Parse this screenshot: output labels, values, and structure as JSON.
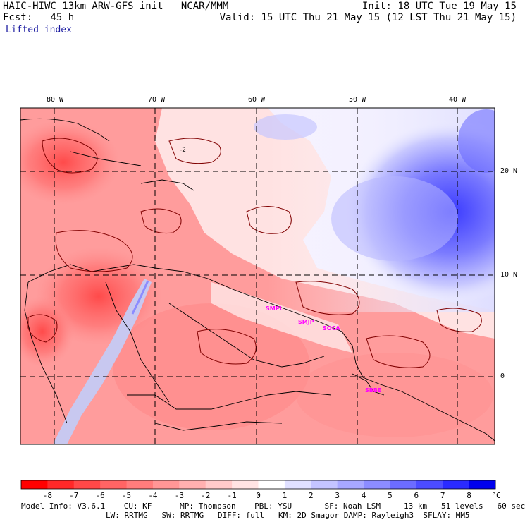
{
  "header": {
    "model_title": "HAIC-HIWC 13km ARW-GFS init   NCAR/MMM",
    "init": "Init: 18 UTC Tue 19 May 15",
    "forecast": "Fcst:   45 h",
    "valid": "Valid: 15 UTC Thu 21 May 15 (12 LST Thu 21 May 15)",
    "field_name": "Lifted index"
  },
  "map": {
    "longitude_labels": [
      "80 W",
      "70 W",
      "60 W",
      "50 W",
      "40 W"
    ],
    "latitude_labels": [
      "20 N",
      "10 N",
      "0"
    ],
    "contour_label": "-2",
    "stations": [
      "SMPL",
      "SMJP",
      "SOCA",
      "SBBE"
    ],
    "colors": {
      "unstable": "#ff0000",
      "neutral": "#ffffff",
      "stable": "#0000ff",
      "contour": "#800000",
      "coastline": "#000000",
      "station": "#ff00ff"
    }
  },
  "colorbar": {
    "labels": [
      "-8",
      "-7",
      "-6",
      "-5",
      "-4",
      "-3",
      "-2",
      "-1",
      "0",
      "1",
      "2",
      "3",
      "4",
      "5",
      "6",
      "7",
      "8"
    ],
    "unit": "°C",
    "colors": [
      "#ff0000",
      "#ff2828",
      "#ff4848",
      "#ff6464",
      "#ff7c7c",
      "#ff9696",
      "#ffb0b0",
      "#ffcaca",
      "#ffe4e4",
      "#ffffff",
      "#e0e0ff",
      "#c4c4ff",
      "#a8a8ff",
      "#8c8cff",
      "#6c6cff",
      "#4c4cff",
      "#2a2aff",
      "#0000ee"
    ]
  },
  "footer": {
    "line1": "Model Info: V3.6.1    CU: KF      MP: Thompson    PBL: YSU       SF: Noah LSM     13 km   51 levels   60 sec",
    "line2": "LW: RRTMG   SW: RRTMG   DIFF: full   KM: 2D Smagor DAMP: Rayleigh3  SFLAY: MM5"
  }
}
